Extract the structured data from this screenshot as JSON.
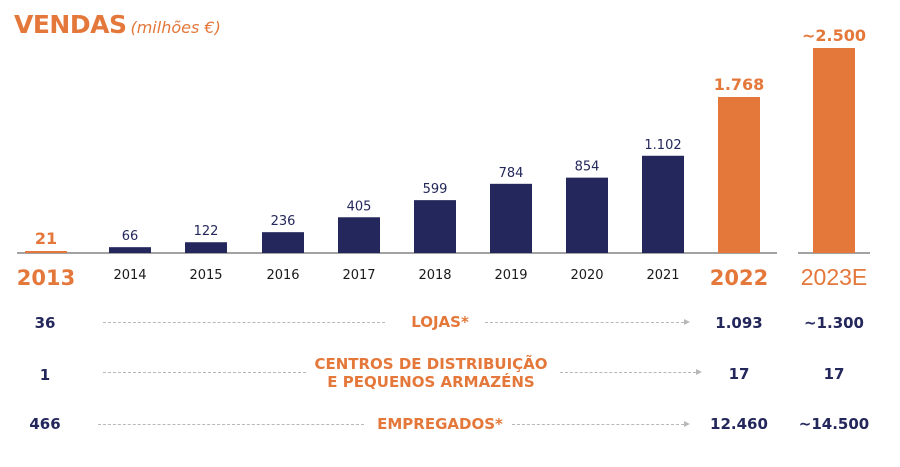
{
  "title": {
    "main": "VENDAS",
    "sub": "(milhões €)"
  },
  "colors": {
    "navy": "#23275B",
    "orange": "#E4773A",
    "axis": "#6b6b6b",
    "dash": "#b8b8b8"
  },
  "chart_data": {
    "type": "bar",
    "title": "VENDAS (milhões €)",
    "xlabel": "",
    "ylabel": "Vendas (milhões €)",
    "grid": false,
    "categories": [
      "2013",
      "2014",
      "2015",
      "2016",
      "2017",
      "2018",
      "2019",
      "2020",
      "2021",
      "2022",
      "2023E"
    ],
    "values": [
      21,
      66,
      122,
      236,
      405,
      599,
      784,
      854,
      1102,
      1768,
      2500
    ],
    "value_labels": [
      "21",
      "66",
      "122",
      "236",
      "405",
      "599",
      "784",
      "854",
      "1.102",
      "1.768",
      "~2.500"
    ],
    "highlight": [
      "2013",
      "2022",
      "2023E"
    ],
    "estimate": [
      "2023E"
    ]
  },
  "metrics": [
    {
      "label_lines": [
        "LOJAS*"
      ],
      "start": "36",
      "v2022": "1.093",
      "v2023": "~1.300"
    },
    {
      "label_lines": [
        "CENTROS DE DISTRIBUIÇÃO",
        "E PEQUENOS ARMAZÉNS"
      ],
      "start": "1",
      "v2022": "17",
      "v2023": "17"
    },
    {
      "label_lines": [
        "EMPREGADOS*"
      ],
      "start": "466",
      "v2022": "12.460",
      "v2023": "~14.500"
    }
  ]
}
